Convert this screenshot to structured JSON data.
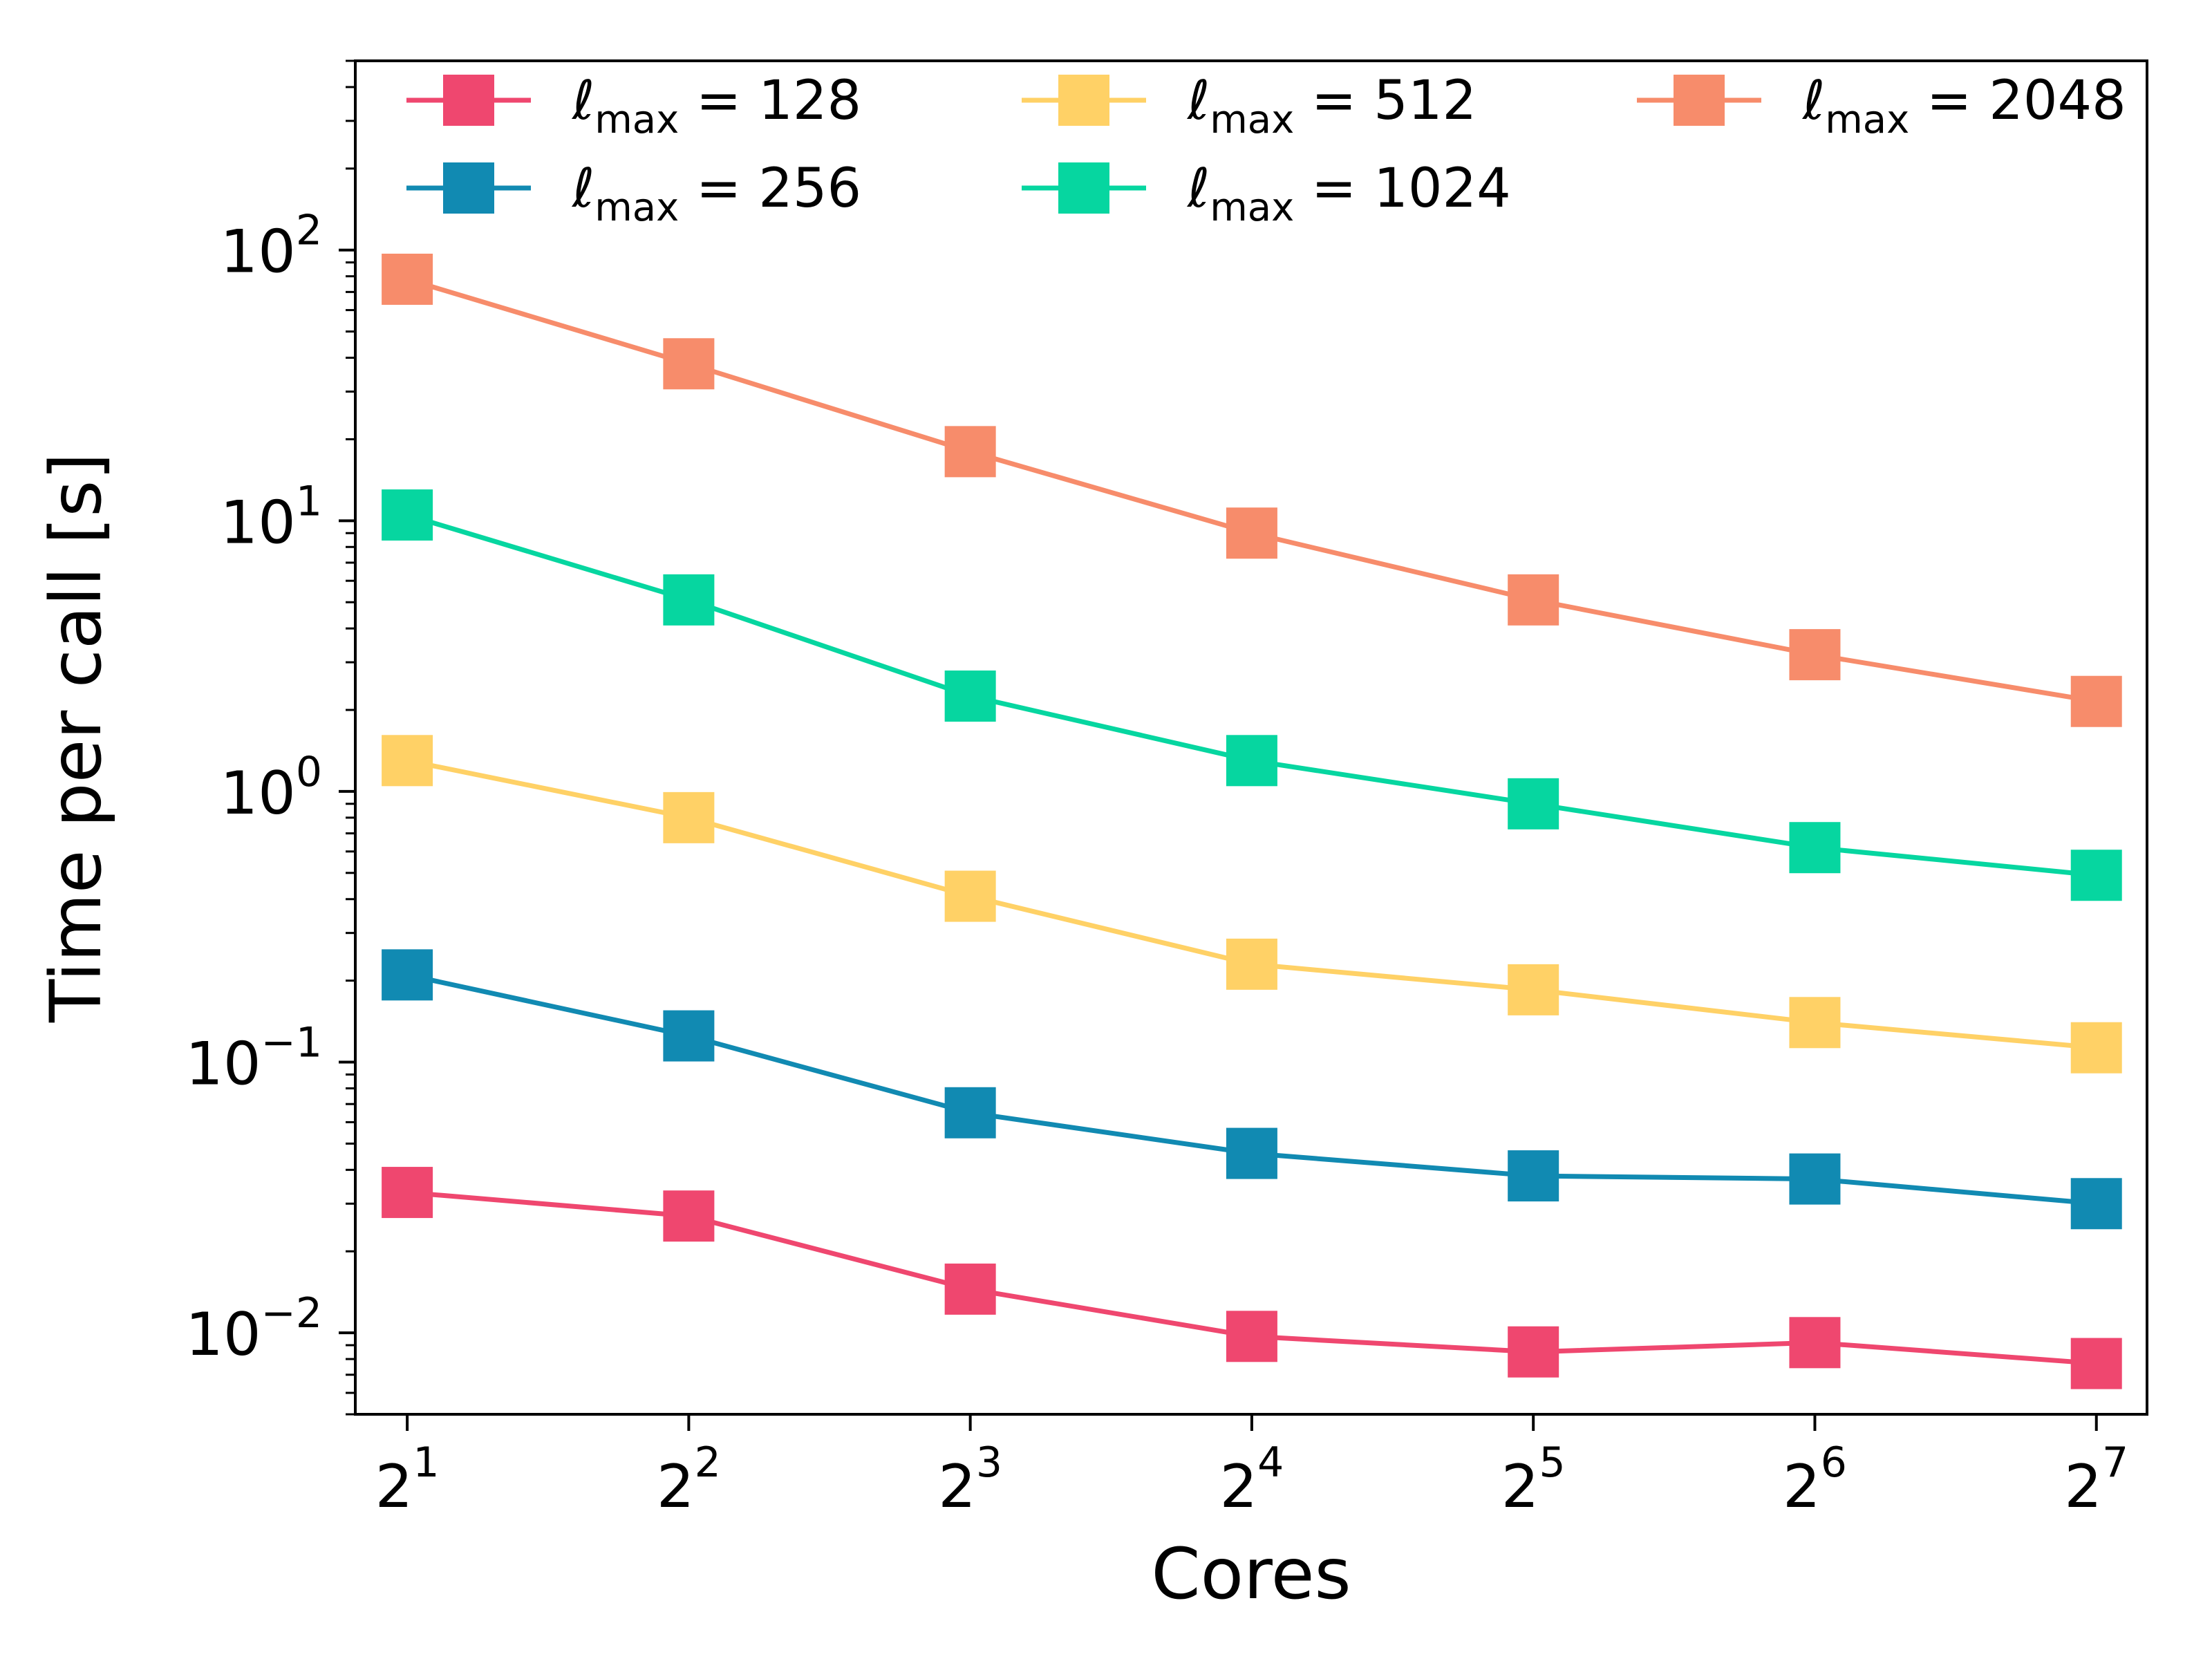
{
  "chart_data": {
    "type": "line",
    "title": "",
    "xlabel": "Cores",
    "ylabel": "Time per call [s]",
    "x_scale": "log2",
    "y_scale": "log10",
    "x": [
      2,
      4,
      8,
      16,
      32,
      64,
      128
    ],
    "x_tick_labels": [
      {
        "base": "2",
        "exp": "1"
      },
      {
        "base": "2",
        "exp": "2"
      },
      {
        "base": "2",
        "exp": "3"
      },
      {
        "base": "2",
        "exp": "4"
      },
      {
        "base": "2",
        "exp": "5"
      },
      {
        "base": "2",
        "exp": "6"
      },
      {
        "base": "2",
        "exp": "7"
      }
    ],
    "y_ticks": [
      0.01,
      0.1,
      1,
      10,
      100
    ],
    "y_tick_labels": [
      {
        "base": "10",
        "exp": "−2"
      },
      {
        "base": "10",
        "exp": "−1"
      },
      {
        "base": "10",
        "exp": "0"
      },
      {
        "base": "10",
        "exp": "1"
      },
      {
        "base": "10",
        "exp": "2"
      }
    ],
    "xlim": [
      1.76,
      145
    ],
    "ylim": [
      0.005,
      500
    ],
    "grid": false,
    "legend_position": "top",
    "series": [
      {
        "name": "ℓmax = 128",
        "symbol": "ℓ",
        "sub": "max",
        "eq": " = 128",
        "color": "#ef476f",
        "values": [
          0.033,
          0.027,
          0.0145,
          0.0097,
          0.0085,
          0.0092,
          0.0077
        ]
      },
      {
        "name": "ℓmax = 256",
        "symbol": "ℓ",
        "sub": "max",
        "eq": " = 256",
        "color": "#118ab2",
        "values": [
          0.21,
          0.125,
          0.065,
          0.046,
          0.038,
          0.037,
          0.03
        ]
      },
      {
        "name": "ℓmax = 512",
        "symbol": "ℓ",
        "sub": "max",
        "eq": " = 512",
        "color": "#ffd166",
        "values": [
          1.3,
          0.8,
          0.41,
          0.23,
          0.185,
          0.14,
          0.113
        ]
      },
      {
        "name": "ℓmax = 1024",
        "symbol": "ℓ",
        "sub": "max",
        "eq": " = 1024",
        "color": "#06d6a0",
        "values": [
          10.5,
          5.1,
          2.25,
          1.3,
          0.9,
          0.62,
          0.49
        ]
      },
      {
        "name": "ℓmax = 2048",
        "symbol": "ℓ",
        "sub": "max",
        "eq": " = 2048",
        "color": "#f78c6b",
        "values": [
          78,
          38,
          18,
          9,
          5.1,
          3.2,
          2.15
        ]
      }
    ]
  }
}
